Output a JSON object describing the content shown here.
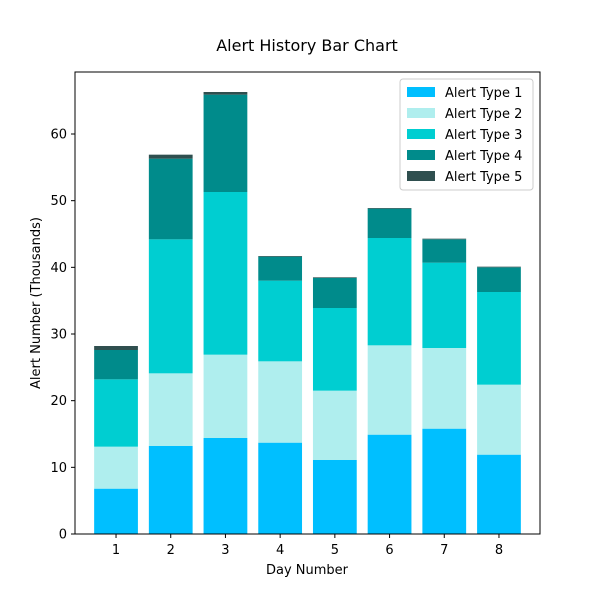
{
  "chart_data": {
    "type": "bar",
    "stacked": true,
    "title": "Alert History Bar Chart",
    "xlabel": "Day Number",
    "ylabel": "Alert Number (Thousands)",
    "categories": [
      "1",
      "2",
      "3",
      "4",
      "5",
      "6",
      "7",
      "8"
    ],
    "ylim": [
      0,
      69.3
    ],
    "yticks": [
      0,
      10,
      20,
      30,
      40,
      50,
      60
    ],
    "legend_position": "top-right",
    "grid": false,
    "series": [
      {
        "name": "Alert Type 1",
        "color": "#00BFFF",
        "values": [
          6.8,
          13.2,
          14.4,
          13.7,
          11.1,
          14.9,
          15.8,
          11.9
        ]
      },
      {
        "name": "Alert Type 2",
        "color": "#AFEEEE",
        "values": [
          6.3,
          10.9,
          12.5,
          12.2,
          10.4,
          13.4,
          12.1,
          10.5
        ]
      },
      {
        "name": "Alert Type 3",
        "color": "#00CED1",
        "values": [
          10.1,
          20.1,
          24.4,
          12.1,
          12.4,
          16.1,
          12.8,
          13.9
        ]
      },
      {
        "name": "Alert Type 4",
        "color": "#008B8B",
        "values": [
          4.4,
          12.1,
          14.6,
          3.6,
          4.5,
          4.4,
          3.5,
          3.7
        ]
      },
      {
        "name": "Alert Type 5",
        "color": "#2F4F4F",
        "values": [
          0.6,
          0.6,
          0.4,
          0.1,
          0.1,
          0.1,
          0.1,
          0.1
        ]
      }
    ]
  }
}
